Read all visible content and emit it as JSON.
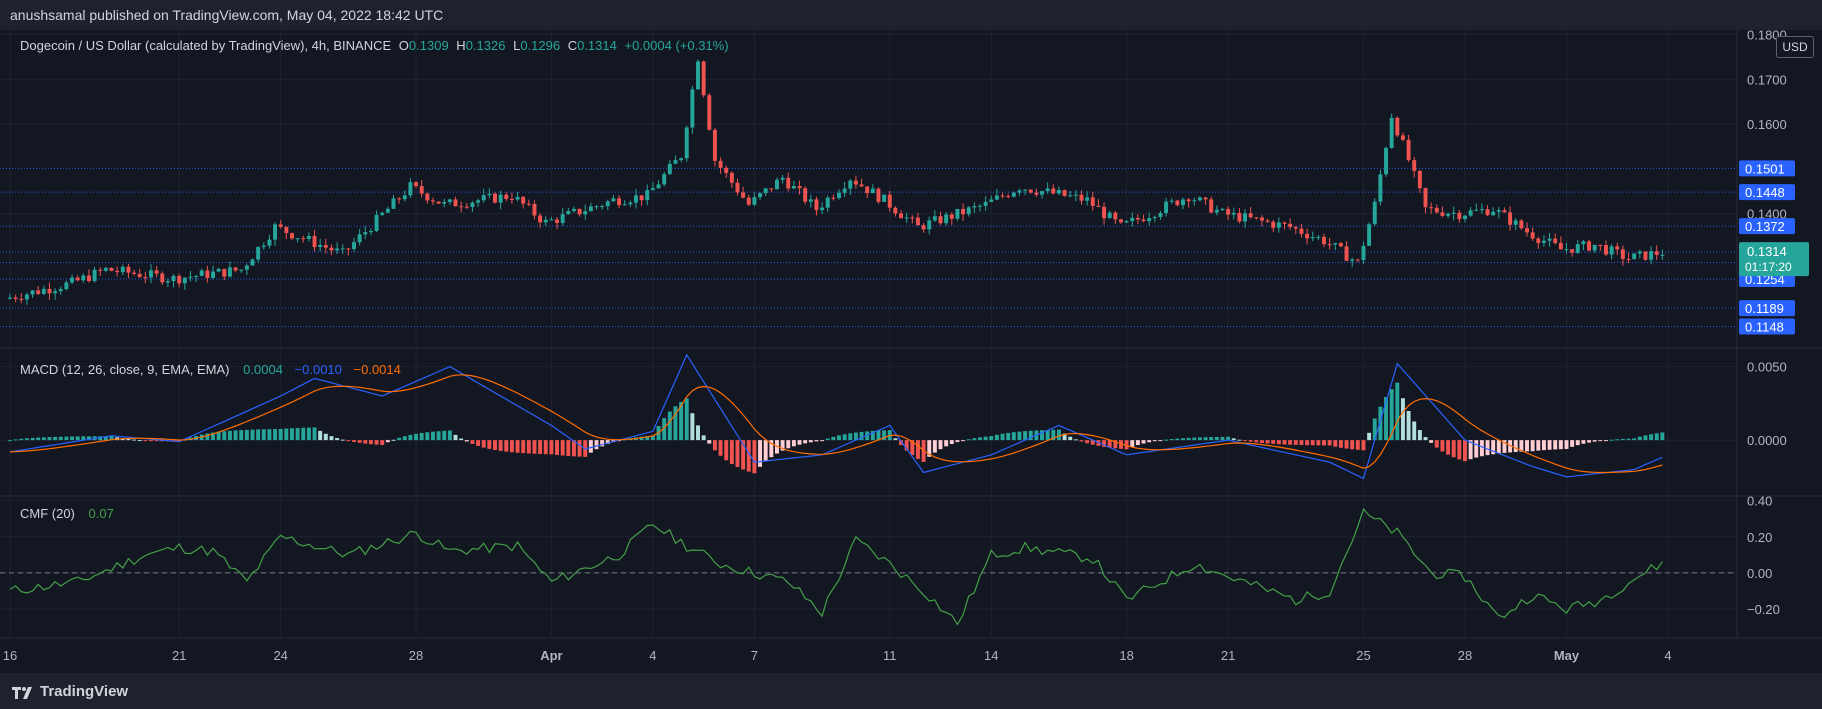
{
  "header": {
    "published": "anushsamal published on TradingView.com, May 04, 2022 18:42 UTC"
  },
  "symbol": {
    "title": "Dogecoin / US Dollar (calculated by TradingView), 4h, BINANCE",
    "o_label": "O",
    "o_value": "0.1309",
    "h_label": "H",
    "h_value": "0.1326",
    "l_label": "L",
    "l_value": "0.1296",
    "c_label": "C",
    "c_value": "0.1314",
    "change": "+0.0004 (+0.31%)"
  },
  "currency": "USD",
  "colors": {
    "up": "#26a69a",
    "down": "#ef5350",
    "macd_line": "#2962ff",
    "signal_line": "#ff6d00",
    "cmf_line": "#43a047",
    "level_line": "#2962ff",
    "background": "#131722"
  },
  "macd_legend": {
    "label": "MACD (12, 26, close, 9, EMA, EMA)",
    "hist": "0.0004",
    "macd": "−0.0010",
    "signal": "−0.0014"
  },
  "cmf_legend": {
    "label": "CMF (20)",
    "value": "0.07"
  },
  "footer": {
    "brand": "TradingView"
  },
  "chart_data": [
    {
      "type": "candlestick",
      "title": "Dogecoin / US Dollar, 4h, BINANCE",
      "ylim": [
        0.11,
        0.181
      ],
      "y_ticks": [
        "0.1800",
        "0.1700",
        "0.1600",
        "0.1400"
      ],
      "x_ticks": [
        "16",
        "21",
        "24",
        "28",
        "Apr",
        "4",
        "7",
        "11",
        "14",
        "18",
        "21",
        "25",
        "28",
        "May",
        "4"
      ],
      "anchor_prices": [
        {
          "date": "Mar 16",
          "price": 0.121
        },
        {
          "date": "Mar 18",
          "price": 0.1245
        },
        {
          "date": "Mar 19",
          "price": 0.1275
        },
        {
          "date": "Mar 21",
          "price": 0.1255
        },
        {
          "date": "Mar 23",
          "price": 0.1275
        },
        {
          "date": "Mar 24",
          "price": 0.137
        },
        {
          "date": "Mar 26",
          "price": 0.131
        },
        {
          "date": "Mar 28",
          "price": 0.146
        },
        {
          "date": "Mar 29",
          "price": 0.142
        },
        {
          "date": "Mar 31",
          "price": 0.144
        },
        {
          "date": "Apr 1",
          "price": 0.138
        },
        {
          "date": "Apr 3",
          "price": 0.143
        },
        {
          "date": "Apr 4",
          "price": 0.144
        },
        {
          "date": "Apr 5",
          "price": 0.153
        },
        {
          "date": "Apr 5 PM",
          "price": 0.175
        },
        {
          "date": "Apr 6",
          "price": 0.152
        },
        {
          "date": "Apr 7",
          "price": 0.142
        },
        {
          "date": "Apr 8",
          "price": 0.148
        },
        {
          "date": "Apr 9",
          "price": 0.141
        },
        {
          "date": "Apr 10",
          "price": 0.148
        },
        {
          "date": "Apr 11",
          "price": 0.143
        },
        {
          "date": "Apr 12",
          "price": 0.137
        },
        {
          "date": "Apr 14",
          "price": 0.142
        },
        {
          "date": "Apr 15",
          "price": 0.146
        },
        {
          "date": "Apr 17",
          "price": 0.143
        },
        {
          "date": "Apr 18",
          "price": 0.137
        },
        {
          "date": "Apr 20",
          "price": 0.144
        },
        {
          "date": "Apr 21",
          "price": 0.14
        },
        {
          "date": "Apr 23",
          "price": 0.137
        },
        {
          "date": "Apr 24",
          "price": 0.134
        },
        {
          "date": "Apr 25",
          "price": 0.129
        },
        {
          "date": "Apr 25 PM",
          "price": 0.142
        },
        {
          "date": "Apr 26",
          "price": 0.162
        },
        {
          "date": "Apr 26 PM",
          "price": 0.152
        },
        {
          "date": "Apr 27",
          "price": 0.141
        },
        {
          "date": "Apr 28",
          "price": 0.14
        },
        {
          "date": "Apr 29",
          "price": 0.141
        },
        {
          "date": "Apr 30",
          "price": 0.136
        },
        {
          "date": "May 1",
          "price": 0.132
        },
        {
          "date": "May 2",
          "price": 0.133
        },
        {
          "date": "May 3",
          "price": 0.13
        },
        {
          "date": "May 4",
          "price": 0.1314
        }
      ],
      "horizontal_levels": [
        {
          "price": 0.1501,
          "label": "0.1501"
        },
        {
          "price": 0.1448,
          "label": "0.1448"
        },
        {
          "price": 0.1372,
          "label": "0.1372"
        },
        {
          "price": 0.1314,
          "label": "0.1314"
        },
        {
          "price": 0.1291,
          "label": "0.1291"
        },
        {
          "price": 0.1254,
          "label": "0.1254"
        },
        {
          "price": 0.1189,
          "label": "0.1189"
        },
        {
          "price": 0.1148,
          "label": "0.1148"
        }
      ],
      "last_price": {
        "price": "0.1314",
        "countdown": "01:17:20"
      }
    },
    {
      "type": "bar",
      "title": "MACD (12, 26, close, 9, EMA, EMA)",
      "ylim": [
        -0.0038,
        0.0062
      ],
      "y_ticks": [
        "0.0050",
        "0.0000"
      ],
      "macd_anchors": [
        {
          "date": "Mar 16",
          "macd": -0.0008
        },
        {
          "date": "Mar 19",
          "macd": 0.0003
        },
        {
          "date": "Mar 21",
          "macd": -0.0001
        },
        {
          "date": "Mar 24",
          "macd": 0.003
        },
        {
          "date": "Mar 25",
          "macd": 0.0042
        },
        {
          "date": "Mar 27",
          "macd": 0.003
        },
        {
          "date": "Mar 29",
          "macd": 0.005
        },
        {
          "date": "Apr 1",
          "macd": 0.001
        },
        {
          "date": "Apr 2",
          "macd": -0.0006
        },
        {
          "date": "Apr 4",
          "macd": 0.0006
        },
        {
          "date": "Apr 5",
          "macd": 0.0058
        },
        {
          "date": "Apr 7",
          "macd": -0.0015
        },
        {
          "date": "Apr 9",
          "macd": -0.001
        },
        {
          "date": "Apr 11",
          "macd": 0.001
        },
        {
          "date": "Apr 12",
          "macd": -0.0022
        },
        {
          "date": "Apr 14",
          "macd": -0.001
        },
        {
          "date": "Apr 16",
          "macd": 0.001
        },
        {
          "date": "Apr 18",
          "macd": -0.001
        },
        {
          "date": "Apr 21",
          "macd": 0.0
        },
        {
          "date": "Apr 24",
          "macd": -0.0015
        },
        {
          "date": "Apr 25",
          "macd": -0.0026
        },
        {
          "date": "Apr 26",
          "macd": 0.0052
        },
        {
          "date": "Apr 28",
          "macd": 0.0
        },
        {
          "date": "Apr 30",
          "macd": -0.0018
        },
        {
          "date": "May 1",
          "macd": -0.0025
        },
        {
          "date": "May 3",
          "macd": -0.002
        },
        {
          "date": "May 4",
          "macd": -0.001
        }
      ]
    },
    {
      "type": "line",
      "title": "CMF (20)",
      "ylim": [
        -0.36,
        0.42
      ],
      "y_ticks": [
        "0.40",
        "0.20",
        "0.00",
        "−0.20"
      ],
      "cmf_anchors": [
        {
          "date": "Mar 16",
          "cmf": -0.1
        },
        {
          "date": "Mar 18",
          "cmf": -0.05
        },
        {
          "date": "Mar 20",
          "cmf": 0.1
        },
        {
          "date": "Mar 21",
          "cmf": 0.14
        },
        {
          "date": "Mar 22",
          "cmf": 0.12
        },
        {
          "date": "Mar 23",
          "cmf": -0.05
        },
        {
          "date": "Mar 24",
          "cmf": 0.2
        },
        {
          "date": "Mar 26",
          "cmf": 0.1
        },
        {
          "date": "Mar 28",
          "cmf": 0.22
        },
        {
          "date": "Mar 29",
          "cmf": 0.12
        },
        {
          "date": "Mar 31",
          "cmf": 0.15
        },
        {
          "date": "Apr 1",
          "cmf": -0.05
        },
        {
          "date": "Apr 3",
          "cmf": 0.1
        },
        {
          "date": "Apr 4",
          "cmf": 0.27
        },
        {
          "date": "Apr 5",
          "cmf": 0.15
        },
        {
          "date": "Apr 6",
          "cmf": 0.05
        },
        {
          "date": "Apr 8",
          "cmf": -0.05
        },
        {
          "date": "Apr 9",
          "cmf": -0.22
        },
        {
          "date": "Apr 10",
          "cmf": 0.18
        },
        {
          "date": "Apr 11",
          "cmf": 0.05
        },
        {
          "date": "Apr 12",
          "cmf": -0.1
        },
        {
          "date": "Apr 13",
          "cmf": -0.28
        },
        {
          "date": "Apr 14",
          "cmf": 0.1
        },
        {
          "date": "Apr 15",
          "cmf": 0.14
        },
        {
          "date": "Apr 17",
          "cmf": 0.08
        },
        {
          "date": "Apr 18",
          "cmf": -0.15
        },
        {
          "date": "Apr 20",
          "cmf": 0.05
        },
        {
          "date": "Apr 21",
          "cmf": -0.02
        },
        {
          "date": "Apr 23",
          "cmf": -0.15
        },
        {
          "date": "Apr 24",
          "cmf": -0.1
        },
        {
          "date": "Apr 25",
          "cmf": 0.33
        },
        {
          "date": "Apr 26",
          "cmf": 0.22
        },
        {
          "date": "Apr 27",
          "cmf": 0.0
        },
        {
          "date": "Apr 28",
          "cmf": -0.02
        },
        {
          "date": "Apr 29",
          "cmf": -0.25
        },
        {
          "date": "Apr 30",
          "cmf": -0.12
        },
        {
          "date": "May 1",
          "cmf": -0.2
        },
        {
          "date": "May 2",
          "cmf": -0.15
        },
        {
          "date": "May 3",
          "cmf": -0.03
        },
        {
          "date": "May 4",
          "cmf": 0.07
        }
      ]
    }
  ]
}
